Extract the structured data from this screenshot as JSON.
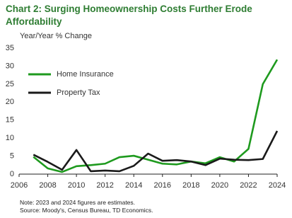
{
  "chart_data": {
    "type": "line",
    "title": "Chart 2: Surging Homeownership Costs Further Erode Affordability",
    "subtitle": "Year/Year % Change",
    "notes": [
      "Note: 2023 and 2024 figures are estimates.",
      "Source: Moody's, Census Bureau, TD Economics."
    ],
    "x": [
      2007,
      2008,
      2009,
      2010,
      2011,
      2012,
      2013,
      2014,
      2015,
      2016,
      2017,
      2018,
      2019,
      2020,
      2021,
      2022,
      2023,
      2024
    ],
    "series": [
      {
        "name": "Home Insurance",
        "color": "#1e9a1e",
        "values": [
          4.8,
          1.6,
          0.6,
          2.2,
          2.5,
          2.9,
          4.7,
          5.1,
          4.0,
          2.9,
          2.7,
          3.5,
          3.0,
          4.7,
          3.5,
          7.0,
          25.0,
          31.8
        ]
      },
      {
        "name": "Property Tax",
        "color": "#1a1a1a",
        "values": [
          5.4,
          3.4,
          1.2,
          6.7,
          0.8,
          1.0,
          0.8,
          2.3,
          5.7,
          3.7,
          3.9,
          3.5,
          2.5,
          4.3,
          4.0,
          3.9,
          4.2,
          12.0
        ]
      }
    ],
    "xlim": [
      2006,
      2024
    ],
    "xticks": [
      2006,
      2008,
      2010,
      2012,
      2014,
      2016,
      2018,
      2020,
      2022,
      2024
    ],
    "ylim": [
      0,
      35
    ],
    "yticks": [
      0,
      5,
      10,
      15,
      20,
      25,
      30,
      35
    ],
    "grid": false,
    "legend": "upper left"
  }
}
